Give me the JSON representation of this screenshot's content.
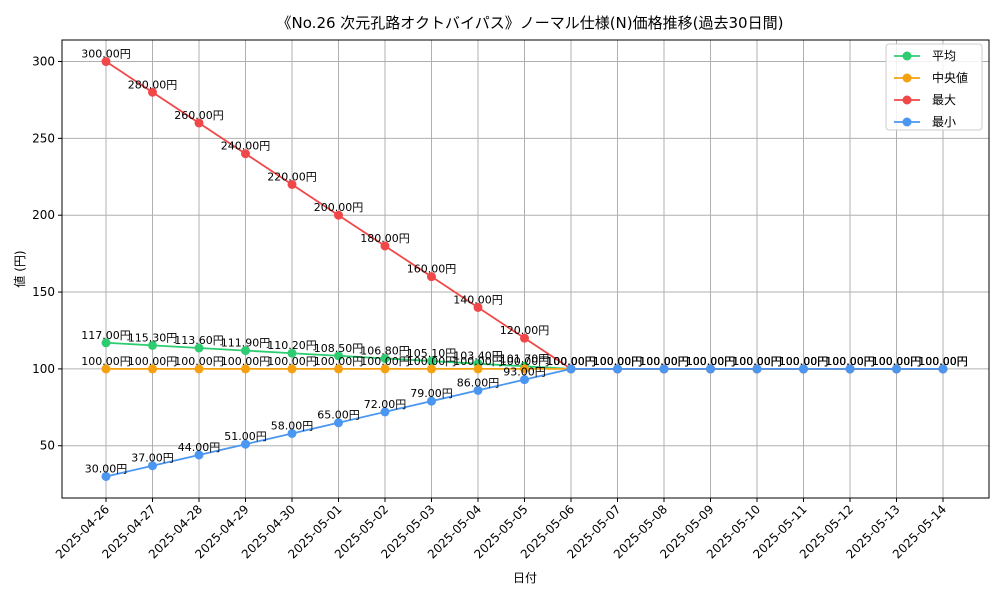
{
  "chart_data": {
    "type": "line",
    "title": "《No.26 次元孔路オクトバイパス》ノーマル仕様(N)価格推移(過去30日間)",
    "xlabel": "日付",
    "ylabel": "値 (円)",
    "ylim": [
      16,
      314
    ],
    "yticks": [
      50,
      100,
      150,
      200,
      250,
      300
    ],
    "grid": true,
    "legend_position": "top-right",
    "categories": [
      "2025-04-26",
      "2025-04-27",
      "2025-04-28",
      "2025-04-29",
      "2025-04-30",
      "2025-05-01",
      "2025-05-02",
      "2025-05-03",
      "2025-05-04",
      "2025-05-05",
      "2025-05-06",
      "2025-05-07",
      "2025-05-08",
      "2025-05-09",
      "2025-05-10",
      "2025-05-11",
      "2025-05-12",
      "2025-05-13",
      "2025-05-14"
    ],
    "label_suffix": "円",
    "series": [
      {
        "name": "平均",
        "color": "#2ecc71",
        "values": [
          117.0,
          115.3,
          113.6,
          111.9,
          110.2,
          108.5,
          106.8,
          105.1,
          103.4,
          101.7,
          100,
          100,
          100,
          100,
          100,
          100,
          100,
          100,
          100
        ]
      },
      {
        "name": "中央値",
        "color": "#f5a00f",
        "values": [
          100,
          100,
          100,
          100,
          100,
          100,
          100,
          100,
          100,
          100,
          100,
          100,
          100,
          100,
          100,
          100,
          100,
          100,
          100
        ]
      },
      {
        "name": "最大",
        "color": "#f04848",
        "values": [
          300,
          280,
          260,
          240,
          220,
          200,
          180,
          160,
          140,
          120,
          100,
          100,
          100,
          100,
          100,
          100,
          100,
          100,
          100
        ]
      },
      {
        "name": "最小",
        "color": "#4a96f0",
        "values": [
          30,
          37,
          44,
          51,
          58,
          65,
          72,
          79,
          86,
          93,
          100,
          100,
          100,
          100,
          100,
          100,
          100,
          100,
          100
        ]
      }
    ]
  }
}
